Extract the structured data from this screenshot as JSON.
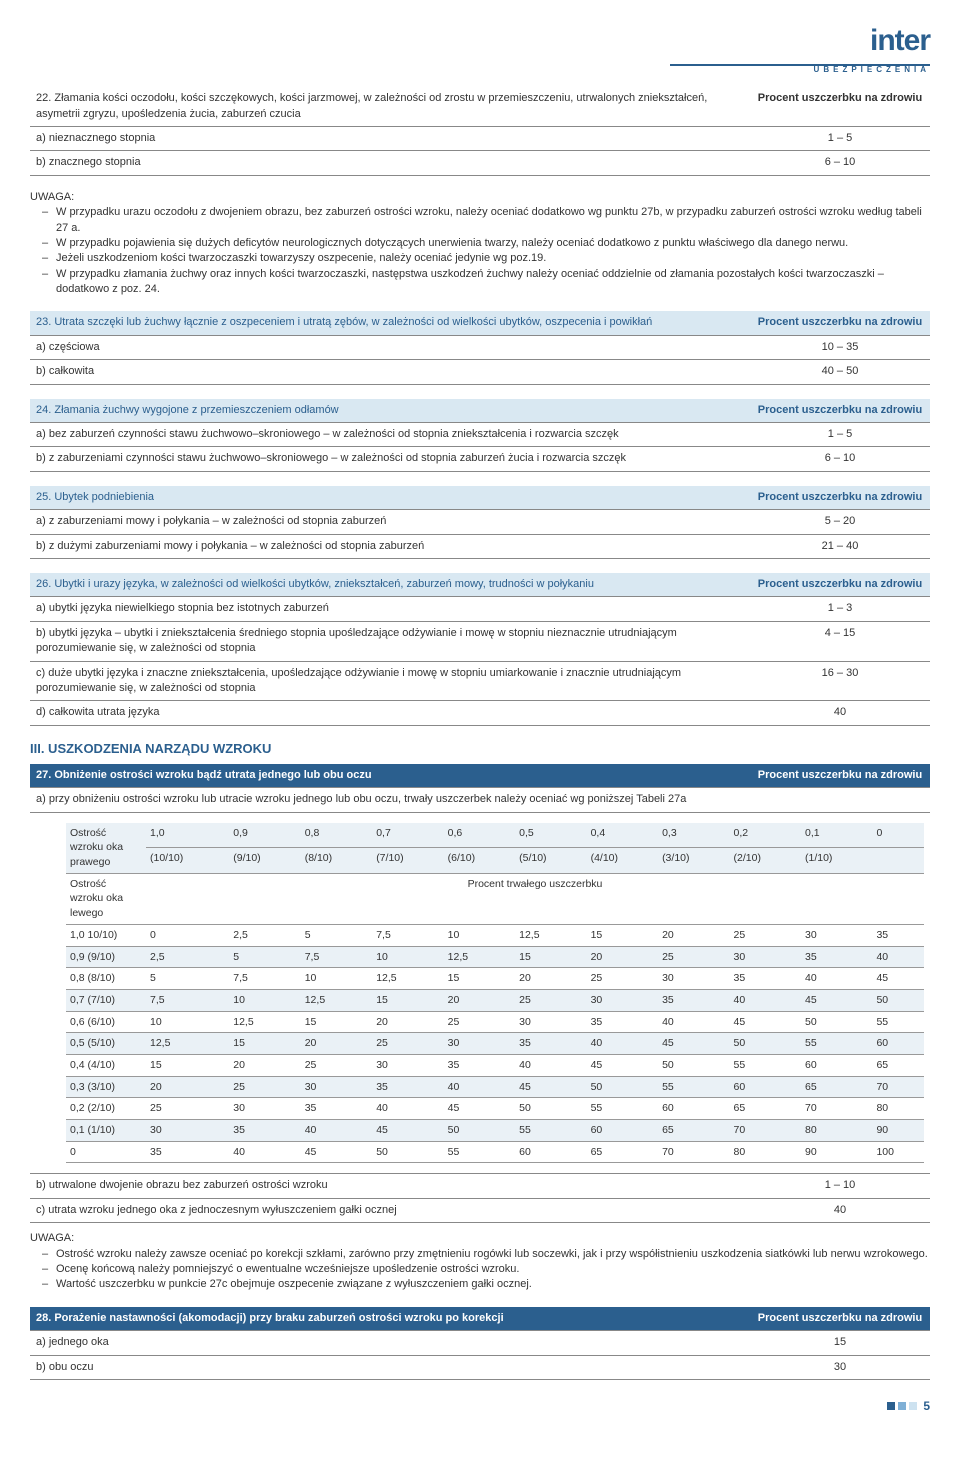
{
  "logo": {
    "brand": "inter",
    "sub": "UBEZPIECZENIA"
  },
  "hdr_procent": "Procent uszczerbku na zdrowiu",
  "s22": {
    "title": "22. Złamania kości oczodołu, kości szczękowych, kości jarzmowej, w zależności od zrostu w przemieszczeniu, utrwalonych zniekształceń, asymetrii zgryzu, upośledzenia żucia, zaburzeń czucia",
    "a": "a) nieznacznego stopnia",
    "av": "1 – 5",
    "b": "b) znacznego stopnia",
    "bv": "6 – 10"
  },
  "uwaga22": {
    "title": "UWAGA:",
    "items": [
      "W przypadku urazu oczodołu z dwojeniem obrazu, bez zaburzeń ostrości wzroku, należy oceniać dodatkowo wg punktu 27b, w przypadku zaburzeń ostrości wzroku według tabeli 27 a.",
      "W przypadku pojawienia się dużych deficytów neurologicznych dotyczących unerwienia twarzy, należy oceniać dodatkowo z punktu właściwego dla danego nerwu.",
      "Jeżeli uszkodzeniom kości twarzoczaszki towarzyszy oszpecenie, należy oceniać jedynie wg poz.19.",
      "W przypadku złamania żuchwy oraz innych kości twarzoczaszki, następstwa uszkodzeń żuchwy należy oceniać oddzielnie od złamania pozostałych kości twarzoczaszki – dodatkowo z poz. 24."
    ]
  },
  "s23": {
    "title": "23. Utrata szczęki lub żuchwy łącznie z oszpeceniem i utratą zębów, w zależności od wielkości ubytków, oszpecenia i powikłań",
    "a": "a)   częściowa",
    "av": "10 – 35",
    "b": "b)   całkowita",
    "bv": "40 – 50"
  },
  "s24": {
    "title": "24. Złamania żuchwy wygojone z przemieszczeniem odłamów",
    "a": "a)   bez zaburzeń czynności stawu żuchwowo–skroniowego – w zależności od stopnia zniekształcenia i rozwarcia szczęk",
    "av": "1 – 5",
    "b": "b)   z zaburzeniami czynności stawu żuchwowo–skroniowego – w zależności od stopnia zaburzeń żucia i rozwarcia szczęk",
    "bv": "6 – 10"
  },
  "s25": {
    "title": "25. Ubytek podniebienia",
    "a": "a)   z zaburzeniami mowy i połykania – w zależności od stopnia zaburzeń",
    "av": "5 – 20",
    "b": "b)   z dużymi zaburzeniami mowy i połykania – w zależności od stopnia zaburzeń",
    "bv": "21 – 40"
  },
  "s26": {
    "title": "26. Ubytki i urazy języka, w zależności od wielkości ubytków, zniekształceń, zaburzeń mowy, trudności w połykaniu",
    "a": "a)   ubytki języka niewielkiego stopnia bez istotnych zaburzeń",
    "av": "1 – 3",
    "b": "b)   ubytki języka – ubytki i zniekształcenia średniego stopnia upośledzające odżywianie i mowę w stopniu nieznacznie utrudniającym porozumiewanie się, w zależności od stopnia",
    "bv": "4 – 15",
    "c": "c)   duże ubytki języka i znaczne zniekształcenia, upośledzające odżywianie i mowę w stopniu umiarkowanie i znacznie utrudniającym porozumiewanie się, w zależności od stopnia",
    "cv": "16 – 30",
    "d": "d)   całkowita utrata języka",
    "dv": "40"
  },
  "h3": "III. USZKODZENIA NARZĄDU WZROKU",
  "s27": {
    "title": "27. Obniżenie ostrości wzroku bądź utrata jednego lub obu oczu",
    "a": "a)   przy obniżeniu ostrości wzroku lub utracie wzroku jednego lub obu oczu, trwały uszczerbek należy oceniać wg poniższej Tabeli 27a",
    "tbl_lbl1": "Ostrość wzroku oka prawego",
    "tbl_lbl2": "Ostrość wzroku oka lewego",
    "tbl_ptu": "Procent trwałego uszczerbku",
    "cols1": [
      "1,0",
      "0,9",
      "0,8",
      "0,7",
      "0,6",
      "0,5",
      "0,4",
      "0,3",
      "0,2",
      "0,1",
      "0"
    ],
    "cols2": [
      "(10/10)",
      "(9/10)",
      "(8/10)",
      "(7/10)",
      "(6/10)",
      "(5/10)",
      "(4/10)",
      "(3/10)",
      "(2/10)",
      "(1/10)",
      ""
    ],
    "rows": [
      {
        "l": "1,0 10/10)",
        "v": [
          "0",
          "2,5",
          "5",
          "7,5",
          "10",
          "12,5",
          "15",
          "20",
          "25",
          "30",
          "35"
        ]
      },
      {
        "l": "0,9 (9/10)",
        "v": [
          "2,5",
          "5",
          "7,5",
          "10",
          "12,5",
          "15",
          "20",
          "25",
          "30",
          "35",
          "40"
        ]
      },
      {
        "l": "0,8 (8/10)",
        "v": [
          "5",
          "7,5",
          "10",
          "12,5",
          "15",
          "20",
          "25",
          "30",
          "35",
          "40",
          "45"
        ]
      },
      {
        "l": "0,7 (7/10)",
        "v": [
          "7,5",
          "10",
          "12,5",
          "15",
          "20",
          "25",
          "30",
          "35",
          "40",
          "45",
          "50"
        ]
      },
      {
        "l": "0,6 (6/10)",
        "v": [
          "10",
          "12,5",
          "15",
          "20",
          "25",
          "30",
          "35",
          "40",
          "45",
          "50",
          "55"
        ]
      },
      {
        "l": "0,5 (5/10)",
        "v": [
          "12,5",
          "15",
          "20",
          "25",
          "30",
          "35",
          "40",
          "45",
          "50",
          "55",
          "60"
        ]
      },
      {
        "l": "0,4 (4/10)",
        "v": [
          "15",
          "20",
          "25",
          "30",
          "35",
          "40",
          "45",
          "50",
          "55",
          "60",
          "65"
        ]
      },
      {
        "l": "0,3 (3/10)",
        "v": [
          "20",
          "25",
          "30",
          "35",
          "40",
          "45",
          "50",
          "55",
          "60",
          "65",
          "70"
        ]
      },
      {
        "l": "0,2 (2/10)",
        "v": [
          "25",
          "30",
          "35",
          "40",
          "45",
          "50",
          "55",
          "60",
          "65",
          "70",
          "80"
        ]
      },
      {
        "l": "0,1 (1/10)",
        "v": [
          "30",
          "35",
          "40",
          "45",
          "50",
          "55",
          "60",
          "65",
          "70",
          "80",
          "90"
        ]
      },
      {
        "l": "0",
        "v": [
          "35",
          "40",
          "45",
          "50",
          "55",
          "60",
          "65",
          "70",
          "80",
          "90",
          "100"
        ]
      }
    ],
    "b": "b)   utrwalone dwojenie obrazu bez zaburzeń ostrości wzroku",
    "bv": "1 – 10",
    "c": "c)   utrata wzroku jednego oka z jednoczesnym wyłuszczeniem gałki ocznej",
    "cv": "40"
  },
  "uwaga27": {
    "title": "UWAGA:",
    "items": [
      "Ostrość wzroku należy zawsze oceniać po korekcji szkłami, zarówno przy zmętnieniu rogówki lub soczewki, jak i przy współistnieniu uszkodzenia siatkówki lub nerwu wzrokowego.",
      "Ocenę końcową należy pomniejszyć o ewentualne wcześniejsze upośledzenie ostrości wzroku.",
      "Wartość uszczerbku w punkcie 27c obejmuje oszpecenie związane z wyłuszczeniem gałki ocznej."
    ]
  },
  "s28": {
    "title": "28. Porażenie nastawności (akomodacji) przy braku zaburzeń ostrości wzroku po korekcji",
    "a": "a)   jednego oka",
    "av": "15",
    "b": "b)   obu oczu",
    "bv": "30"
  },
  "page": "5",
  "colors": {
    "accent": "#2b5f8e",
    "lt": "#d9e8f2",
    "alt": "#eaf1f6"
  }
}
